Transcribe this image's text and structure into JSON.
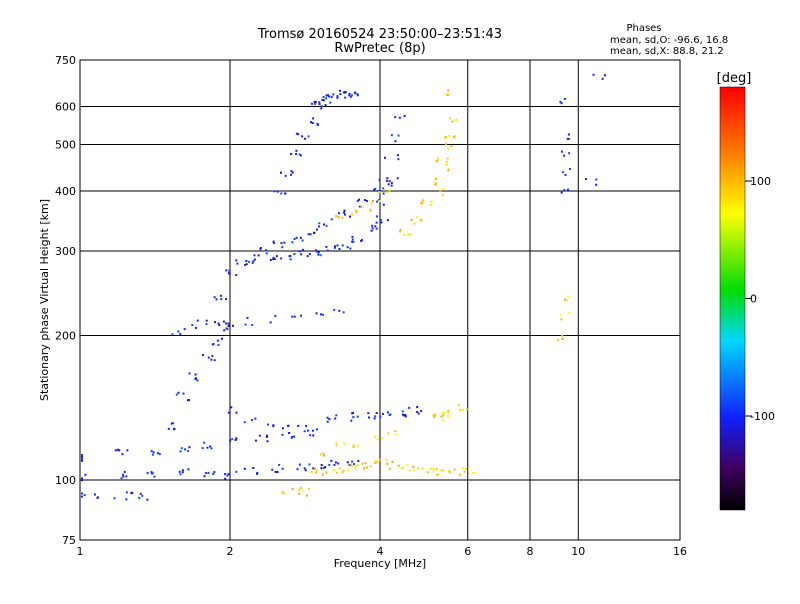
{
  "chart_data": {
    "type": "scatter",
    "title": "Tromsø 20160524 23:50:00–23:51:43",
    "subtitle": "RwPretec (8p)",
    "xlabel": "Frequency [MHz]",
    "ylabel": "Stationary phase Virtual Height [km]",
    "x_scale": "log",
    "y_scale": "log",
    "xlim": [
      1,
      16
    ],
    "ylim": [
      75,
      750
    ],
    "x_ticks": [
      1,
      2,
      4,
      6,
      8,
      10,
      16
    ],
    "x_tick_labels": [
      "1",
      "2",
      "4",
      "6",
      "8",
      "10",
      "16"
    ],
    "y_ticks": [
      75,
      100,
      200,
      300,
      400,
      500,
      600,
      750
    ],
    "y_tick_labels": [
      "75",
      "100",
      "200",
      "300",
      "400",
      "500",
      "600",
      "750"
    ],
    "grid": true,
    "stats": {
      "heading": "Phases",
      "line_o": "mean, sd,O:  -96.6, 16.8",
      "line_x": "mean, sd,X:   88.8, 21.2"
    },
    "colorbar": {
      "label": "[deg]",
      "range": [
        -180,
        180
      ],
      "ticks": [
        100,
        0,
        -100
      ],
      "tick_labels": [
        "100",
        "0",
        "-100"
      ]
    },
    "series": [
      {
        "mode": "O",
        "phase_deg": -100,
        "traces": [
          {
            "x": [
              1.0,
              1.2,
              1.4,
              1.6,
              1.8,
              2.0,
              2.2,
              2.5,
              2.8,
              3.0,
              3.2,
              3.5
            ],
            "y": [
              102,
              103,
              103,
              104,
              104,
              103,
              105,
              106,
              107,
              108,
              109,
              110
            ]
          },
          {
            "x": [
              1.0,
              1.1,
              1.2,
              1.3,
              1.35
            ],
            "y": [
              93,
              93,
              93,
              93,
              93
            ]
          },
          {
            "x": [
              1.0,
              1.2,
              1.4,
              1.6,
              1.8,
              2.0,
              2.3,
              2.6,
              2.9
            ],
            "y": [
              112,
              114,
              115,
              117,
              119,
              121,
              122,
              124,
              126
            ]
          },
          {
            "x": [
              1.5,
              1.6,
              1.7,
              1.8,
              1.9,
              2.0
            ],
            "y": [
              130,
              150,
              165,
              180,
              195,
              210
            ]
          },
          {
            "x": [
              1.55,
              1.65,
              1.75,
              1.85,
              1.95
            ],
            "y": [
              205,
              210,
              212,
              214,
              215
            ]
          },
          {
            "x": [
              1.9,
              2.0,
              2.1,
              2.2,
              2.4,
              2.6,
              2.8,
              3.0,
              3.2,
              3.4,
              3.6,
              3.8,
              4.0
            ],
            "y": [
              240,
              270,
              285,
              290,
              292,
              295,
              298,
              300,
              305,
              310,
              320,
              335,
              350
            ]
          },
          {
            "x": [
              2.3,
              2.5,
              2.7,
              2.9,
              3.1,
              3.4,
              3.7,
              4.0,
              4.2
            ],
            "y": [
              300,
              310,
              320,
              330,
              345,
              360,
              380,
              400,
              420
            ]
          },
          {
            "x": [
              2.5,
              2.6,
              2.7,
              2.8,
              2.9,
              3.0
            ],
            "y": [
              400,
              440,
              480,
              520,
              560,
              600
            ]
          },
          {
            "x": [
              3.0,
              3.1,
              3.2,
              3.3,
              3.4,
              3.5
            ],
            "y": [
              620,
              625,
              630,
              635,
              640,
              645
            ]
          },
          {
            "x": [
              4.0,
              4.1,
              4.2,
              4.3,
              4.4
            ],
            "y": [
              380,
              420,
              470,
              520,
              580
            ]
          },
          {
            "x": [
              2.0,
              2.2,
              2.4,
              2.6,
              2.8
            ],
            "y": [
              140,
              135,
              132,
              130,
              128
            ]
          },
          {
            "x": [
              2.2,
              2.4,
              2.7,
              3.0,
              3.3
            ],
            "y": [
              215,
              218,
              220,
              222,
              225
            ]
          },
          {
            "x": [
              3.2,
              3.5,
              3.8,
              4.1,
              4.4,
              4.7
            ],
            "y": [
              135,
              136,
              137,
              138,
              139,
              140
            ]
          },
          {
            "x": [
              9.3,
              9.3,
              9.3,
              9.3,
              9.3
            ],
            "y": [
              400,
              440,
              480,
              520,
              620
            ]
          },
          {
            "x": [
              10.5,
              11.0
            ],
            "y": [
              420,
              700
            ]
          }
        ]
      },
      {
        "mode": "X",
        "phase_deg": 90,
        "traces": [
          {
            "x": [
              3.0,
              3.2,
              3.4,
              3.6,
              3.8,
              4.0,
              4.3,
              4.6,
              5.0,
              5.3,
              5.6,
              6.0
            ],
            "y": [
              104,
              105,
              106,
              107,
              108,
              110,
              108,
              106,
              105,
              104,
              104,
              105
            ]
          },
          {
            "x": [
              3.0,
              3.3,
              3.6,
              3.9,
              4.2
            ],
            "y": [
              115,
              118,
              120,
              122,
              125
            ]
          },
          {
            "x": [
              3.3,
              3.5,
              3.7,
              3.9,
              4.1
            ],
            "y": [
              350,
              360,
              370,
              385,
              400
            ]
          },
          {
            "x": [
              4.5,
              4.7,
              4.9,
              5.1,
              5.3,
              5.5
            ],
            "y": [
              330,
              350,
              380,
              420,
              470,
              520
            ]
          },
          {
            "x": [
              5.2,
              5.3,
              5.4,
              5.5,
              5.6
            ],
            "y": [
              400,
              450,
              500,
              560,
              640
            ]
          },
          {
            "x": [
              2.6,
              2.7,
              2.8
            ],
            "y": [
              95,
              95,
              95
            ]
          },
          {
            "x": [
              5.0,
              5.2,
              5.4,
              5.6,
              5.8
            ],
            "y": [
              135,
              136,
              138,
              140,
              142
            ]
          },
          {
            "x": [
              9.3,
              9.3,
              9.3
            ],
            "y": [
              200,
              220,
              240
            ]
          }
        ]
      }
    ]
  }
}
